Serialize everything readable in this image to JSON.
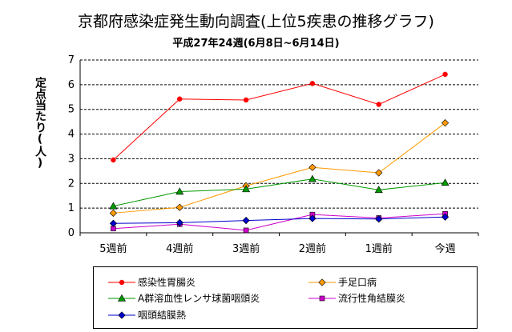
{
  "chart_data": {
    "type": "line",
    "title": "京都府感染症発生動向調査(上位5疾患の推移グラフ)",
    "subtitle": "平成27年24週(6月8日~6月14日)",
    "ylabel": "定点当たり(人)",
    "xlabel": "",
    "ylim": [
      0,
      7
    ],
    "yticks": [
      "0",
      "1",
      "2",
      "3",
      "4",
      "5",
      "6",
      "7"
    ],
    "grid": true,
    "legend_position": "bottom",
    "categories": [
      "5週前",
      "4週前",
      "3週前",
      "2週前",
      "1週前",
      "今週"
    ],
    "series": [
      {
        "name": "感染性胃腸炎",
        "color": "#ff0000",
        "marker": "circle",
        "values": [
          2.95,
          5.42,
          5.38,
          6.05,
          5.2,
          6.42
        ]
      },
      {
        "name": "手足口病",
        "color": "#ff9900",
        "marker": "diamond",
        "values": [
          0.8,
          1.03,
          1.9,
          2.65,
          2.43,
          4.45
        ]
      },
      {
        "name": "A群溶血性レンサ球菌咽頭炎",
        "color": "#009900",
        "marker": "triangle",
        "values": [
          1.08,
          1.67,
          1.77,
          2.18,
          1.74,
          2.03
        ]
      },
      {
        "name": "流行性角結膜炎",
        "color": "#cc00cc",
        "marker": "square",
        "values": [
          0.17,
          0.35,
          0.1,
          0.74,
          0.6,
          0.77
        ]
      },
      {
        "name": "咽頭結膜熱",
        "color": "#0000cc",
        "marker": "diamond",
        "values": [
          0.38,
          0.41,
          0.5,
          0.58,
          0.56,
          0.64
        ]
      }
    ]
  }
}
